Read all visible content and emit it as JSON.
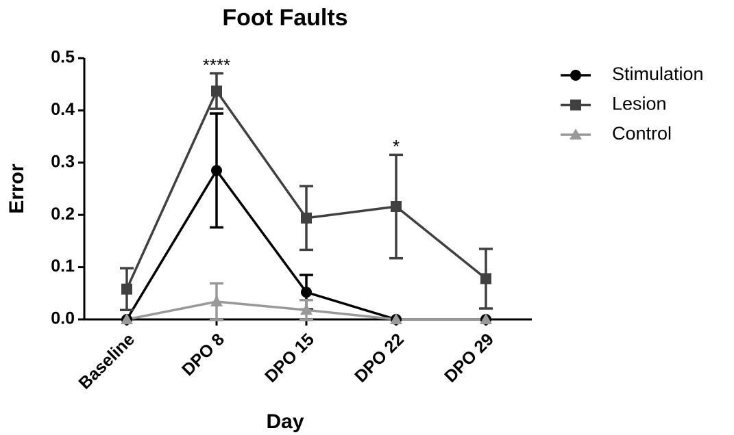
{
  "chart_data": {
    "type": "line",
    "title": "Foot Faults",
    "x_label": "Day",
    "y_label": "Error",
    "categories": [
      "Baseline",
      "DPO 8",
      "DPO 15",
      "DPO 22",
      "DPO 29"
    ],
    "ylim": [
      0,
      0.5
    ],
    "yticks": [
      {
        "value": 0,
        "label": "0.0"
      },
      0.1,
      0.2,
      0.3,
      0.4,
      0.5
    ],
    "legend": "right",
    "series": [
      {
        "name": "Stimulation",
        "color": "#000000",
        "marker": "circle",
        "values": [
          0,
          0.285,
          0.052,
          0,
          0
        ],
        "errors": [
          0,
          0.109,
          0.033,
          0,
          0
        ]
      },
      {
        "name": "Lesion",
        "color": "#404040",
        "marker": "square",
        "values": [
          0.058,
          0.437,
          0.194,
          0.216,
          0.078
        ],
        "errors": [
          0.04,
          0.034,
          0.061,
          0.099,
          0.057
        ]
      },
      {
        "name": "Control",
        "color": "#999999",
        "marker": "triangle",
        "values": [
          0,
          0.034,
          0.018,
          0,
          0
        ],
        "errors": [
          0,
          0.035,
          0.019,
          0,
          0
        ]
      }
    ],
    "annotations": [
      {
        "text": "****",
        "category": "DPO 8"
      },
      {
        "text": "*",
        "category": "DPO 22"
      }
    ]
  }
}
